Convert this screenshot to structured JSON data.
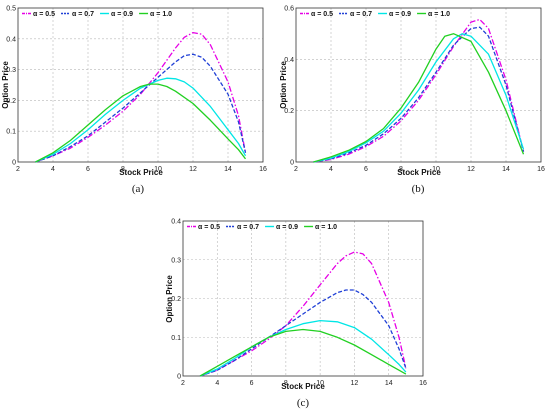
{
  "chart_data": [
    {
      "type": "line",
      "caption": "(a)",
      "xlabel": "Stock Price",
      "ylabel": "Option Price",
      "xlim": [
        2,
        16
      ],
      "ylim": [
        0,
        0.5
      ],
      "xticks": [
        "2",
        "4",
        "6",
        "8",
        "10",
        "12",
        "14",
        "16"
      ],
      "yticks": [
        "0",
        "0.1",
        "0.2",
        "0.3",
        "0.4",
        "0.5"
      ],
      "grid": true,
      "legend_position": "top-left",
      "series": [
        {
          "name": "α = 0.5",
          "color": "#e600e6",
          "dash": "dashdot",
          "x": [
            3,
            4,
            5,
            6,
            7,
            8,
            9,
            10,
            11,
            11.5,
            12,
            12.5,
            13,
            14,
            14.6,
            15
          ],
          "y": [
            0,
            0.02,
            0.045,
            0.08,
            0.12,
            0.165,
            0.22,
            0.29,
            0.37,
            0.405,
            0.42,
            0.415,
            0.38,
            0.26,
            0.15,
            0.03
          ]
        },
        {
          "name": "α = 0.7",
          "color": "#1f3fd6",
          "dash": "dashed",
          "x": [
            3,
            4,
            5,
            6,
            7,
            8,
            9,
            10,
            11,
            11.5,
            12,
            12.5,
            13,
            14,
            14.6,
            15
          ],
          "y": [
            0,
            0.02,
            0.05,
            0.085,
            0.13,
            0.175,
            0.225,
            0.275,
            0.325,
            0.345,
            0.35,
            0.34,
            0.31,
            0.22,
            0.13,
            0.03
          ]
        },
        {
          "name": "α = 0.9",
          "color": "#00e6e6",
          "dash": "solid",
          "x": [
            3,
            4,
            5,
            6,
            7,
            8,
            9,
            10,
            10.5,
            11,
            11.5,
            12,
            13,
            14,
            14.6,
            15
          ],
          "y": [
            0,
            0.025,
            0.06,
            0.105,
            0.155,
            0.2,
            0.24,
            0.265,
            0.272,
            0.27,
            0.26,
            0.24,
            0.18,
            0.105,
            0.06,
            0.02
          ]
        },
        {
          "name": "α = 1.0",
          "color": "#22d022",
          "dash": "solid",
          "x": [
            3,
            4,
            5,
            6,
            7,
            8,
            9,
            9.5,
            10,
            10.5,
            11,
            12,
            13,
            14,
            14.6,
            15
          ],
          "y": [
            0,
            0.03,
            0.07,
            0.12,
            0.17,
            0.215,
            0.245,
            0.253,
            0.253,
            0.245,
            0.23,
            0.19,
            0.135,
            0.075,
            0.04,
            0.01
          ]
        }
      ]
    },
    {
      "type": "line",
      "caption": "(b)",
      "xlabel": "Stock Price",
      "ylabel": "Option Price",
      "xlim": [
        2,
        16
      ],
      "ylim": [
        0,
        0.6
      ],
      "xticks": [
        "2",
        "4",
        "6",
        "8",
        "10",
        "12",
        "14",
        "16"
      ],
      "yticks": [
        "0",
        "0.2",
        "0.4",
        "0.6"
      ],
      "grid": true,
      "legend_position": "top-left",
      "series": [
        {
          "name": "α = 0.5",
          "color": "#e600e6",
          "dash": "dashdot",
          "x": [
            3,
            4,
            5,
            6,
            7,
            8,
            9,
            10,
            11,
            12,
            12.5,
            13,
            14,
            15
          ],
          "y": [
            0,
            0.01,
            0.03,
            0.06,
            0.1,
            0.16,
            0.24,
            0.34,
            0.45,
            0.545,
            0.555,
            0.52,
            0.32,
            0.04
          ]
        },
        {
          "name": "α = 0.7",
          "color": "#1f3fd6",
          "dash": "dashed",
          "x": [
            3,
            4,
            5,
            6,
            7,
            8,
            9,
            10,
            11,
            12,
            12.5,
            13,
            14,
            15
          ],
          "y": [
            0,
            0.012,
            0.035,
            0.065,
            0.11,
            0.17,
            0.25,
            0.35,
            0.455,
            0.52,
            0.525,
            0.49,
            0.3,
            0.04
          ]
        },
        {
          "name": "α = 0.9",
          "color": "#00e6e6",
          "dash": "solid",
          "x": [
            3,
            4,
            5,
            6,
            7,
            8,
            9,
            10,
            11,
            11.5,
            12,
            13,
            14,
            15
          ],
          "y": [
            0,
            0.015,
            0.04,
            0.075,
            0.12,
            0.19,
            0.28,
            0.39,
            0.48,
            0.5,
            0.49,
            0.42,
            0.26,
            0.05
          ]
        },
        {
          "name": "α = 1.0",
          "color": "#22d022",
          "dash": "solid",
          "x": [
            3,
            4,
            5,
            6,
            7,
            8,
            9,
            10,
            10.5,
            11,
            12,
            13,
            14,
            15
          ],
          "y": [
            0,
            0.02,
            0.045,
            0.08,
            0.13,
            0.21,
            0.31,
            0.44,
            0.49,
            0.5,
            0.47,
            0.35,
            0.2,
            0.03
          ]
        }
      ]
    },
    {
      "type": "line",
      "caption": "(c)",
      "xlabel": "Stock Price",
      "ylabel": "Option Price",
      "xlim": [
        2,
        16
      ],
      "ylim": [
        0,
        0.4
      ],
      "xticks": [
        "2",
        "4",
        "6",
        "8",
        "10",
        "12",
        "14",
        "16"
      ],
      "yticks": [
        "0",
        "0.1",
        "0.2",
        "0.3",
        "0.4"
      ],
      "grid": true,
      "legend_position": "top-left",
      "series": [
        {
          "name": "α = 0.5",
          "color": "#e600e6",
          "dash": "dashdot",
          "x": [
            3,
            4,
            5,
            6,
            7,
            8,
            9,
            10,
            11,
            11.5,
            12,
            12.5,
            13,
            14,
            14.6,
            15
          ],
          "y": [
            0,
            0.015,
            0.04,
            0.065,
            0.095,
            0.13,
            0.18,
            0.235,
            0.29,
            0.31,
            0.32,
            0.315,
            0.29,
            0.19,
            0.1,
            0.02
          ]
        },
        {
          "name": "α = 0.7",
          "color": "#1f3fd6",
          "dash": "dashed",
          "x": [
            3,
            4,
            5,
            6,
            7,
            8,
            9,
            10,
            11,
            11.5,
            12,
            12.5,
            13,
            14,
            14.6,
            15
          ],
          "y": [
            0,
            0.015,
            0.04,
            0.07,
            0.1,
            0.13,
            0.16,
            0.19,
            0.215,
            0.222,
            0.222,
            0.21,
            0.19,
            0.13,
            0.07,
            0.02
          ]
        },
        {
          "name": "α = 0.9",
          "color": "#00e6e6",
          "dash": "solid",
          "x": [
            3,
            4,
            5,
            6,
            7,
            8,
            9,
            10,
            11,
            12,
            13,
            14,
            14.6,
            15
          ],
          "y": [
            0,
            0.018,
            0.045,
            0.075,
            0.1,
            0.12,
            0.135,
            0.143,
            0.14,
            0.125,
            0.095,
            0.055,
            0.03,
            0.01
          ]
        },
        {
          "name": "α = 1.0",
          "color": "#22d022",
          "dash": "solid",
          "x": [
            3,
            4,
            5,
            6,
            7,
            8,
            9,
            10,
            11,
            12,
            13,
            14,
            14.6,
            15
          ],
          "y": [
            0,
            0.025,
            0.05,
            0.075,
            0.1,
            0.115,
            0.12,
            0.115,
            0.1,
            0.08,
            0.055,
            0.03,
            0.015,
            0.005
          ]
        }
      ]
    }
  ]
}
